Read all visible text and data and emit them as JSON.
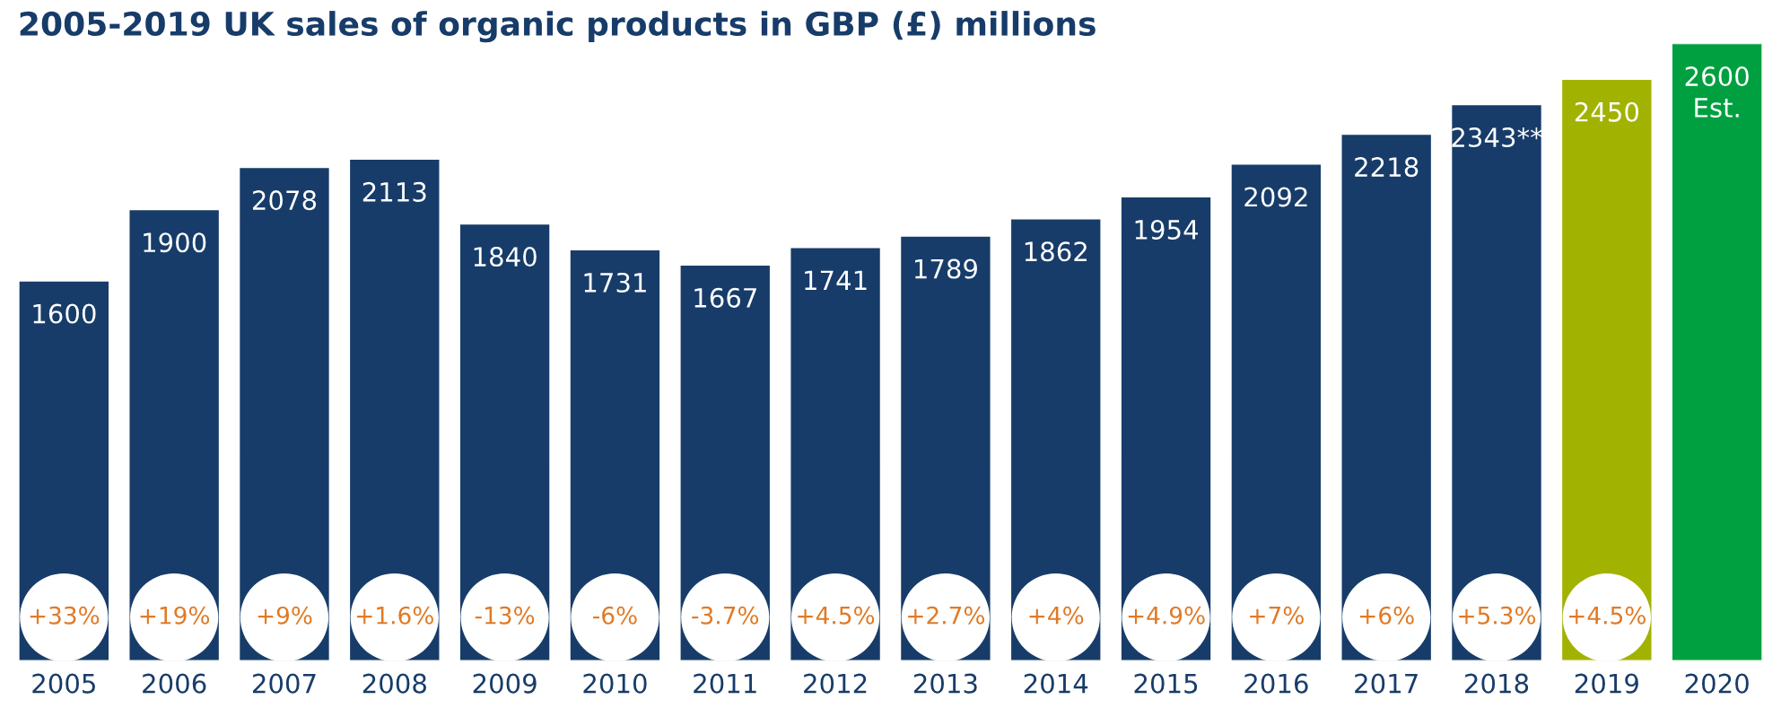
{
  "chart_data": {
    "type": "bar",
    "title": "2005-2019 UK sales of organic products in GBP (£) millions",
    "categories": [
      "2005",
      "2006",
      "2007",
      "2008",
      "2009",
      "2010",
      "2011",
      "2012",
      "2013",
      "2014",
      "2015",
      "2016",
      "2017",
      "2018",
      "2019",
      "2020"
    ],
    "values": [
      1600,
      1900,
      2078,
      2113,
      1840,
      1731,
      1667,
      1741,
      1789,
      1862,
      1954,
      2092,
      2218,
      2343,
      2450,
      2600
    ],
    "value_labels": [
      "1600",
      "1900",
      "2078",
      "2113",
      "1840",
      "1731",
      "1667",
      "1741",
      "1789",
      "1862",
      "1954",
      "2092",
      "2218",
      "2343**",
      "2450",
      "2600\nEst."
    ],
    "colors": [
      "#173c69",
      "#173c69",
      "#173c69",
      "#173c69",
      "#173c69",
      "#173c69",
      "#173c69",
      "#173c69",
      "#173c69",
      "#173c69",
      "#173c69",
      "#173c69",
      "#173c69",
      "#173c69",
      "#a1b200",
      "#00a040"
    ],
    "annotations": [
      "+33%",
      "+19%",
      "+9%",
      "+1.6%",
      "-13%",
      "-6%",
      "-3.7%",
      "+4.5%",
      "+2.7%",
      "+4%",
      "+4.9%",
      "+7%",
      "+6%",
      "+5.3%",
      "+4.5%"
    ],
    "grid": false,
    "legend": false
  }
}
